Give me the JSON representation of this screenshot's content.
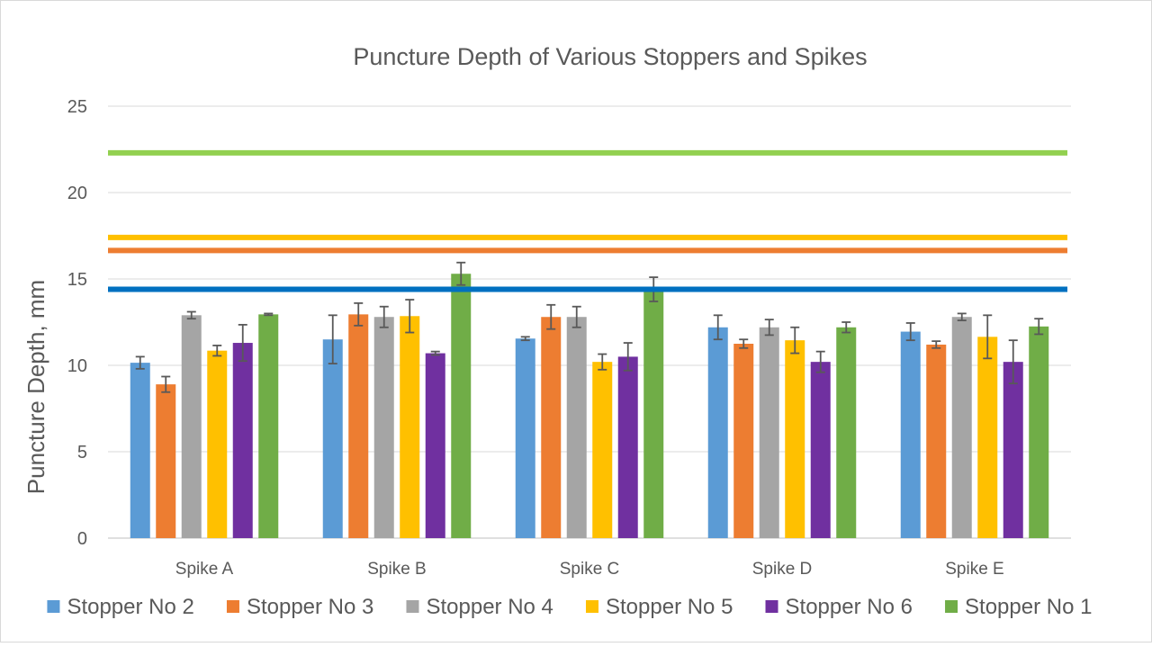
{
  "chart_data": {
    "type": "bar",
    "title": "Puncture Depth of Various Stoppers and Spikes",
    "xlabel": "",
    "ylabel": "Puncture Depth, mm",
    "ylim": [
      0,
      25
    ],
    "yticks": [
      0,
      5,
      10,
      15,
      20,
      25
    ],
    "grid": true,
    "legend_position": "bottom",
    "categories": [
      "Spike A",
      "Spike B",
      "Spike C",
      "Spike D",
      "Spike E"
    ],
    "series": [
      {
        "name": "Stopper No 2",
        "color": "#5b9bd5",
        "values": [
          10.15,
          11.5,
          11.55,
          12.2,
          11.95
        ],
        "errors": [
          0.35,
          1.4,
          0.1,
          0.7,
          0.5
        ]
      },
      {
        "name": "Stopper No 3",
        "color": "#ed7d31",
        "values": [
          8.9,
          12.95,
          12.8,
          11.25,
          11.2
        ],
        "errors": [
          0.45,
          0.65,
          0.7,
          0.25,
          0.2
        ]
      },
      {
        "name": "Stopper No 4",
        "color": "#a5a5a5",
        "values": [
          12.9,
          12.8,
          12.8,
          12.2,
          12.8
        ],
        "errors": [
          0.2,
          0.6,
          0.6,
          0.45,
          0.2
        ]
      },
      {
        "name": "Stopper No 5",
        "color": "#ffc000",
        "values": [
          10.85,
          12.85,
          10.2,
          11.45,
          11.65
        ],
        "errors": [
          0.3,
          0.95,
          0.45,
          0.75,
          1.25
        ]
      },
      {
        "name": "Stopper No 6",
        "color": "#7030a0",
        "values": [
          11.3,
          10.7,
          10.5,
          10.2,
          10.2
        ],
        "errors": [
          1.05,
          0.1,
          0.8,
          0.6,
          1.25
        ]
      },
      {
        "name": "Stopper No 1",
        "color": "#70ad47",
        "values": [
          12.95,
          15.3,
          14.4,
          12.2,
          12.25
        ],
        "errors": [
          0.05,
          0.65,
          0.7,
          0.3,
          0.45
        ]
      }
    ],
    "reference_lines": [
      {
        "value": 22.3,
        "color": "#92d050"
      },
      {
        "value": 17.4,
        "color": "#ffc000"
      },
      {
        "value": 16.65,
        "color": "#ed7d31"
      },
      {
        "value": 14.4,
        "color": "#0070c0"
      }
    ]
  }
}
